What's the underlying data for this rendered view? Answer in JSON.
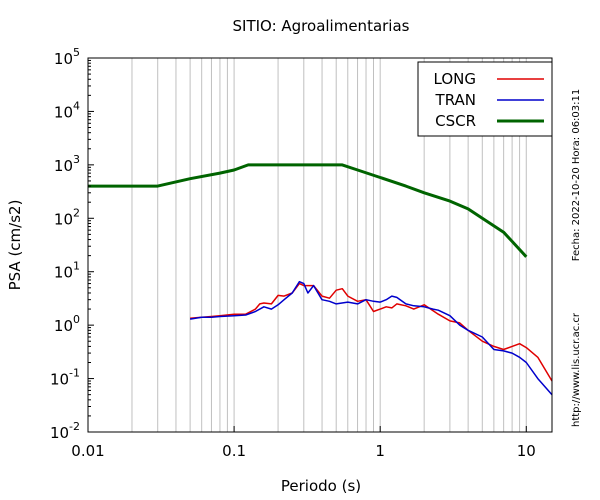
{
  "chart_data": {
    "type": "line",
    "title": "SITIO: Agroalimentarias",
    "xlabel": "Periodo (s)",
    "ylabel": "PSA (cm/s2)",
    "x_scale": "log",
    "y_scale": "log",
    "xlim": [
      0.01,
      15
    ],
    "ylim": [
      0.01,
      100000
    ],
    "x_ticks": [
      {
        "value": 0.01,
        "label": "0.01"
      },
      {
        "value": 0.1,
        "label": "0.1"
      },
      {
        "value": 1,
        "label": "1"
      },
      {
        "value": 10,
        "label": "10"
      }
    ],
    "y_ticks": [
      {
        "value": 0.01,
        "base": "10",
        "exp": "-2"
      },
      {
        "value": 0.1,
        "base": "10",
        "exp": "-1"
      },
      {
        "value": 1,
        "base": "10",
        "exp": "0"
      },
      {
        "value": 10,
        "base": "10",
        "exp": "1"
      },
      {
        "value": 100,
        "base": "10",
        "exp": "2"
      },
      {
        "value": 1000,
        "base": "10",
        "exp": "3"
      },
      {
        "value": 10000,
        "base": "10",
        "exp": "4"
      },
      {
        "value": 100000,
        "base": "10",
        "exp": "5"
      }
    ],
    "grid": "x-minor-vertical",
    "legend_position": "top-right",
    "side_text_date": "Fecha: 2022-10-20 Hora: 06:03:11",
    "side_text_url": "http://www.lis.ucr.ac.cr",
    "series": [
      {
        "name": "LONG",
        "color": "#e00000",
        "x": [
          0.05,
          0.06,
          0.07,
          0.08,
          0.1,
          0.12,
          0.14,
          0.15,
          0.16,
          0.18,
          0.2,
          0.22,
          0.25,
          0.28,
          0.3,
          0.35,
          0.4,
          0.45,
          0.5,
          0.55,
          0.6,
          0.7,
          0.8,
          0.9,
          1.0,
          1.1,
          1.2,
          1.3,
          1.5,
          1.7,
          2.0,
          2.5,
          3.0,
          3.5,
          4.0,
          5.0,
          6.0,
          7.0,
          8.0,
          9.0,
          10.0,
          12.0,
          15.0
        ],
        "y": [
          1.35,
          1.4,
          1.45,
          1.5,
          1.6,
          1.6,
          2.0,
          2.5,
          2.6,
          2.5,
          3.6,
          3.5,
          4.0,
          6.0,
          5.5,
          5.5,
          3.5,
          3.2,
          4.5,
          4.8,
          3.5,
          2.8,
          3.0,
          1.8,
          2.0,
          2.2,
          2.1,
          2.5,
          2.3,
          2.0,
          2.4,
          1.6,
          1.2,
          1.1,
          0.8,
          0.5,
          0.4,
          0.35,
          0.4,
          0.45,
          0.38,
          0.25,
          0.09
        ]
      },
      {
        "name": "TRAN",
        "color": "#0000cc",
        "x": [
          0.05,
          0.06,
          0.07,
          0.08,
          0.1,
          0.12,
          0.14,
          0.16,
          0.18,
          0.2,
          0.22,
          0.25,
          0.28,
          0.3,
          0.32,
          0.35,
          0.4,
          0.45,
          0.5,
          0.6,
          0.7,
          0.8,
          0.9,
          1.0,
          1.1,
          1.2,
          1.3,
          1.5,
          1.7,
          2.0,
          2.3,
          2.5,
          3.0,
          3.5,
          4.0,
          5.0,
          6.0,
          7.0,
          8.0,
          9.0,
          10.0,
          12.0,
          15.0
        ],
        "y": [
          1.3,
          1.4,
          1.4,
          1.45,
          1.5,
          1.55,
          1.8,
          2.2,
          2.0,
          2.4,
          3.0,
          4.0,
          6.5,
          6.0,
          4.0,
          5.5,
          3.0,
          2.8,
          2.5,
          2.7,
          2.5,
          3.0,
          2.8,
          2.7,
          3.0,
          3.5,
          3.3,
          2.5,
          2.3,
          2.2,
          2.0,
          1.9,
          1.5,
          1.0,
          0.8,
          0.6,
          0.35,
          0.33,
          0.3,
          0.25,
          0.2,
          0.1,
          0.05
        ]
      },
      {
        "name": "CSCR",
        "color": "#006400",
        "x": [
          0.01,
          0.03,
          0.05,
          0.08,
          0.1,
          0.125,
          0.2,
          0.3,
          0.4,
          0.55,
          0.7,
          1.0,
          1.5,
          2.0,
          3.0,
          4.0,
          5.0,
          7.0,
          10.0
        ],
        "y": [
          400,
          400,
          550,
          700,
          800,
          1000,
          1000,
          1000,
          1000,
          1000,
          800,
          580,
          400,
          300,
          210,
          150,
          100,
          55,
          19
        ]
      }
    ]
  }
}
